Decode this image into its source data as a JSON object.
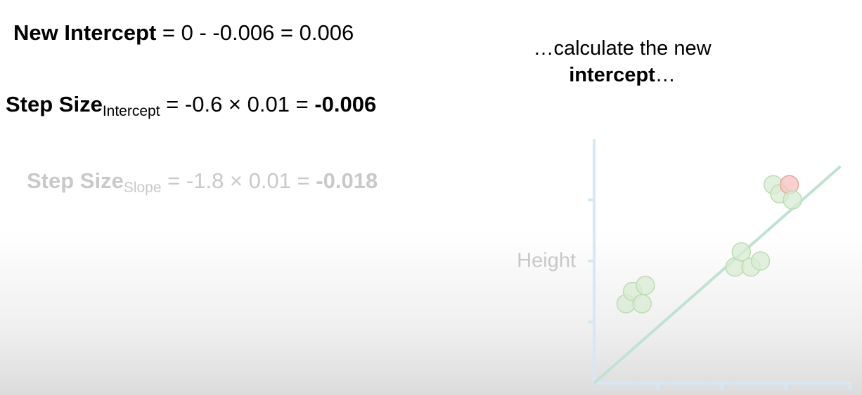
{
  "equations": {
    "new_intercept": {
      "label": "New Intercept",
      "expression": "= 0 - -0.006 = 0.006"
    },
    "step_intercept": {
      "label": "Step Size",
      "subscript": "Intercept",
      "expression": "= -0.6 × 0.01 = ",
      "result": "-0.006"
    },
    "step_slope": {
      "label": "Step Size",
      "subscript": "Slope",
      "expression": "= -1.8 × 0.01 = ",
      "result": "-0.018"
    }
  },
  "caption": {
    "line1": "…calculate the new",
    "line2_bold": "intercept",
    "line2_rest": "…"
  },
  "chart_data": {
    "type": "scatter",
    "ylabel": "Height",
    "xlabel": "",
    "xlim": [
      0,
      4
    ],
    "ylim": [
      0,
      4
    ],
    "points": [
      {
        "x": 0.5,
        "y": 1.3
      },
      {
        "x": 0.6,
        "y": 1.5
      },
      {
        "x": 0.75,
        "y": 1.3
      },
      {
        "x": 0.8,
        "y": 1.6
      },
      {
        "x": 2.2,
        "y": 1.9
      },
      {
        "x": 2.3,
        "y": 2.15
      },
      {
        "x": 2.45,
        "y": 1.9
      },
      {
        "x": 2.6,
        "y": 2.0
      },
      {
        "x": 2.8,
        "y": 3.25
      },
      {
        "x": 2.9,
        "y": 3.1
      },
      {
        "x": 3.05,
        "y": 3.25,
        "highlight": true
      },
      {
        "x": 3.1,
        "y": 3.0
      }
    ],
    "fit_line": {
      "x": [
        0,
        3.85
      ],
      "y": [
        0,
        3.55
      ]
    },
    "colors": {
      "axis": "#d6e8f3",
      "point_fill": "#d8ecd2",
      "point_stroke": "#bcdcb4",
      "highlight_fill": "#f5c2bd",
      "highlight_stroke": "#eaa59e",
      "line": "#bfe3d2"
    }
  }
}
